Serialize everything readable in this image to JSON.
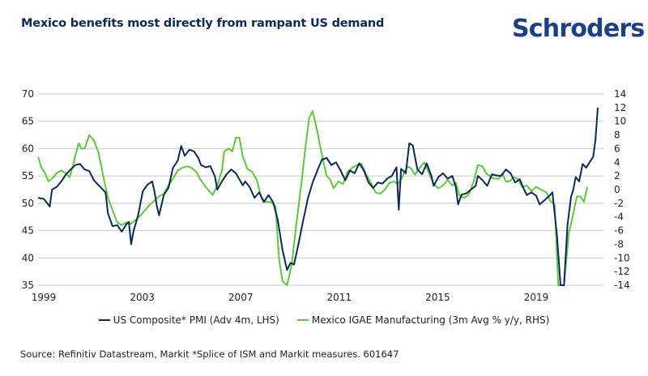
{
  "header": {
    "title": "Mexico benefits most directly from rampant US demand",
    "brand": "Schroders"
  },
  "footer": {
    "source": "Source: Refinitiv Datastream, Markit *Splice of ISM and Markit measures. 601647"
  },
  "colors": {
    "us_pmi": "#0b2a5b",
    "mexico_igae": "#5cc93b",
    "grid": "#c8c8c8",
    "title": "#0b2a5b",
    "brand": "#1d3f86"
  },
  "chart_data": {
    "type": "line",
    "title": "Mexico benefits most directly from rampant US demand",
    "xlabel": "",
    "ylabel": "",
    "x_ticks": [
      "1999",
      "2003",
      "2007",
      "2011",
      "2015",
      "2019"
    ],
    "x_range": [
      1999,
      2022
    ],
    "y_left": {
      "range": [
        35,
        70
      ],
      "ticks": [
        "70",
        "65",
        "60",
        "55",
        "50",
        "45",
        "40",
        "35"
      ]
    },
    "y_right": {
      "range": [
        -14,
        14
      ],
      "ticks": [
        "14",
        "12",
        "10",
        "8",
        "6",
        "4",
        "2",
        "0",
        "-2",
        "-4",
        "-6",
        "-8",
        "-10",
        "-12",
        "-14"
      ]
    },
    "grid": true,
    "legend_position": "bottom",
    "series": [
      {
        "name": "US Composite* PMI (Adv 4m, LHS)",
        "axis": "left",
        "points": [
          [
            1999.0,
            51.0
          ],
          [
            1999.25,
            50.8
          ],
          [
            1999.5,
            49.4
          ],
          [
            1999.6,
            52.5
          ],
          [
            1999.8,
            53.0
          ],
          [
            2000.0,
            54.0
          ],
          [
            2000.2,
            55.3
          ],
          [
            2000.4,
            56.2
          ],
          [
            2000.6,
            57.0
          ],
          [
            2000.8,
            57.2
          ],
          [
            2001.0,
            56.2
          ],
          [
            2001.2,
            55.9
          ],
          [
            2001.4,
            54.2
          ],
          [
            2001.6,
            53.3
          ],
          [
            2001.9,
            52.0
          ],
          [
            2002.0,
            48.2
          ],
          [
            2002.2,
            45.8
          ],
          [
            2002.4,
            46.0
          ],
          [
            2002.6,
            44.8
          ],
          [
            2002.8,
            46.2
          ],
          [
            2002.9,
            46.6
          ],
          [
            2003.0,
            42.5
          ],
          [
            2003.1,
            44.9
          ],
          [
            2003.3,
            47.8
          ],
          [
            2003.5,
            52.2
          ],
          [
            2003.7,
            53.4
          ],
          [
            2003.9,
            54.0
          ],
          [
            2004.0,
            52.2
          ],
          [
            2004.1,
            49.6
          ],
          [
            2004.2,
            47.8
          ],
          [
            2004.4,
            51.5
          ],
          [
            2004.6,
            52.8
          ],
          [
            2004.8,
            56.5
          ],
          [
            2005.0,
            57.8
          ],
          [
            2005.15,
            60.5
          ],
          [
            2005.3,
            58.7
          ],
          [
            2005.5,
            59.8
          ],
          [
            2005.7,
            59.5
          ],
          [
            2005.9,
            58.2
          ],
          [
            2006.0,
            57.0
          ],
          [
            2006.2,
            56.6
          ],
          [
            2006.4,
            56.8
          ],
          [
            2006.6,
            54.9
          ],
          [
            2006.7,
            52.5
          ],
          [
            2006.9,
            54.0
          ],
          [
            2007.1,
            55.3
          ],
          [
            2007.3,
            56.2
          ],
          [
            2007.5,
            55.5
          ],
          [
            2007.7,
            54.0
          ],
          [
            2007.8,
            53.3
          ],
          [
            2007.9,
            54.0
          ],
          [
            2008.1,
            52.9
          ],
          [
            2008.3,
            51.0
          ],
          [
            2008.5,
            52.0
          ],
          [
            2008.7,
            50.2
          ],
          [
            2008.9,
            51.5
          ],
          [
            2009.1,
            50.2
          ],
          [
            2009.3,
            47.0
          ],
          [
            2009.5,
            41.5
          ],
          [
            2009.7,
            37.8
          ],
          [
            2009.85,
            39.1
          ],
          [
            2010.0,
            38.8
          ],
          [
            2010.2,
            42.8
          ],
          [
            2010.4,
            47.0
          ],
          [
            2010.6,
            51.0
          ],
          [
            2010.8,
            53.8
          ],
          [
            2011.0,
            56.0
          ],
          [
            2011.2,
            58.0
          ],
          [
            2011.4,
            58.3
          ],
          [
            2011.6,
            57.0
          ],
          [
            2011.8,
            57.5
          ],
          [
            2012.0,
            56.0
          ],
          [
            2012.2,
            54.2
          ],
          [
            2012.4,
            56.0
          ],
          [
            2012.6,
            55.5
          ],
          [
            2012.8,
            57.3
          ],
          [
            2013.0,
            56.0
          ],
          [
            2013.2,
            53.8
          ],
          [
            2013.4,
            52.8
          ],
          [
            2013.6,
            53.8
          ],
          [
            2013.8,
            53.6
          ],
          [
            2014.0,
            54.5
          ],
          [
            2014.2,
            55.0
          ],
          [
            2014.4,
            56.6
          ],
          [
            2014.5,
            48.8
          ],
          [
            2014.6,
            56.3
          ],
          [
            2014.8,
            55.5
          ],
          [
            2014.95,
            61.0
          ],
          [
            2015.1,
            60.6
          ],
          [
            2015.3,
            56.2
          ],
          [
            2015.5,
            55.3
          ],
          [
            2015.7,
            57.3
          ],
          [
            2015.9,
            55.0
          ],
          [
            2016.0,
            53.2
          ],
          [
            2016.2,
            54.8
          ],
          [
            2016.4,
            55.5
          ],
          [
            2016.6,
            54.5
          ],
          [
            2016.8,
            55.0
          ],
          [
            2016.95,
            53.0
          ],
          [
            2017.05,
            49.8
          ],
          [
            2017.2,
            51.6
          ],
          [
            2017.4,
            51.8
          ],
          [
            2017.6,
            52.5
          ],
          [
            2017.8,
            53.2
          ],
          [
            2017.9,
            55.0
          ],
          [
            2018.1,
            54.2
          ],
          [
            2018.3,
            53.2
          ],
          [
            2018.5,
            55.3
          ],
          [
            2018.7,
            55.1
          ],
          [
            2018.9,
            55.0
          ],
          [
            2019.1,
            56.2
          ],
          [
            2019.3,
            55.5
          ],
          [
            2019.5,
            53.8
          ],
          [
            2019.7,
            54.4
          ],
          [
            2019.85,
            52.8
          ],
          [
            2020.0,
            51.5
          ],
          [
            2020.2,
            52.0
          ],
          [
            2020.4,
            51.4
          ],
          [
            2020.55,
            49.8
          ],
          [
            2020.75,
            50.5
          ],
          [
            2021.0,
            51.5
          ],
          [
            2021.1,
            52.0
          ],
          [
            2021.3,
            44.0
          ],
          [
            2021.45,
            35.0
          ],
          [
            2021.6,
            35.0
          ],
          [
            2021.75,
            46.0
          ],
          [
            2021.9,
            51.2
          ],
          [
            2022.0,
            52.5
          ],
          [
            2022.1,
            54.8
          ],
          [
            2022.25,
            54.0
          ],
          [
            2022.4,
            57.2
          ],
          [
            2022.55,
            56.5
          ],
          [
            2022.7,
            57.5
          ],
          [
            2022.85,
            58.5
          ],
          [
            2022.95,
            61.5
          ],
          [
            2023.05,
            67.5
          ]
        ]
      },
      {
        "name": "Mexico IGAE Manufacturing (3m Avg % y/y, RHS)",
        "axis": "right",
        "points": [
          [
            1999.0,
            4.8
          ],
          [
            1999.15,
            3.2
          ],
          [
            1999.3,
            2.4
          ],
          [
            1999.45,
            1.2
          ],
          [
            1999.6,
            1.6
          ],
          [
            1999.8,
            2.4
          ],
          [
            2000.0,
            2.8
          ],
          [
            2000.2,
            2.4
          ],
          [
            2000.35,
            1.8
          ],
          [
            2000.5,
            3.4
          ],
          [
            2000.6,
            5.0
          ],
          [
            2000.75,
            6.8
          ],
          [
            2000.85,
            6.0
          ],
          [
            2001.0,
            6.0
          ],
          [
            2001.2,
            8.0
          ],
          [
            2001.4,
            7.2
          ],
          [
            2001.6,
            5.4
          ],
          [
            2001.8,
            2.0
          ],
          [
            2002.0,
            -1.2
          ],
          [
            2002.2,
            -3.0
          ],
          [
            2002.4,
            -4.8
          ],
          [
            2002.6,
            -5.2
          ],
          [
            2002.8,
            -4.8
          ],
          [
            2003.0,
            -5.0
          ],
          [
            2003.2,
            -4.4
          ],
          [
            2003.4,
            -3.8
          ],
          [
            2003.6,
            -3.0
          ],
          [
            2003.8,
            -2.2
          ],
          [
            2004.0,
            -1.6
          ],
          [
            2004.2,
            -1.0
          ],
          [
            2004.4,
            -0.6
          ],
          [
            2004.6,
            0.6
          ],
          [
            2004.8,
            1.6
          ],
          [
            2005.0,
            2.8
          ],
          [
            2005.2,
            3.2
          ],
          [
            2005.4,
            3.4
          ],
          [
            2005.6,
            3.2
          ],
          [
            2005.8,
            2.6
          ],
          [
            2005.95,
            1.6
          ],
          [
            2006.2,
            0.4
          ],
          [
            2006.5,
            -0.8
          ],
          [
            2006.7,
            0.6
          ],
          [
            2006.9,
            2.8
          ],
          [
            2007.0,
            5.6
          ],
          [
            2007.2,
            6.0
          ],
          [
            2007.35,
            5.6
          ],
          [
            2007.5,
            7.6
          ],
          [
            2007.65,
            7.6
          ],
          [
            2007.8,
            4.8
          ],
          [
            2008.0,
            3.0
          ],
          [
            2008.2,
            2.6
          ],
          [
            2008.4,
            1.4
          ],
          [
            2008.6,
            -1.2
          ],
          [
            2008.8,
            -1.8
          ],
          [
            2009.0,
            -1.8
          ],
          [
            2009.2,
            -2.4
          ],
          [
            2009.35,
            -10.0
          ],
          [
            2009.5,
            -13.4
          ],
          [
            2009.7,
            -14.0
          ],
          [
            2009.9,
            -11.0
          ],
          [
            2010.1,
            -5.0
          ],
          [
            2010.3,
            0.5
          ],
          [
            2010.5,
            6.5
          ],
          [
            2010.65,
            10.5
          ],
          [
            2010.8,
            11.5
          ],
          [
            2011.0,
            8.5
          ],
          [
            2011.2,
            5.0
          ],
          [
            2011.4,
            2.0
          ],
          [
            2011.55,
            1.5
          ],
          [
            2011.7,
            0.2
          ],
          [
            2011.9,
            1.2
          ],
          [
            2012.1,
            0.8
          ],
          [
            2012.3,
            2.6
          ],
          [
            2012.5,
            3.2
          ],
          [
            2012.7,
            3.6
          ],
          [
            2012.9,
            3.8
          ],
          [
            2013.1,
            2.2
          ],
          [
            2013.3,
            1.0
          ],
          [
            2013.5,
            -0.4
          ],
          [
            2013.7,
            -0.6
          ],
          [
            2013.9,
            0.0
          ],
          [
            2014.1,
            1.0
          ],
          [
            2014.3,
            1.2
          ],
          [
            2014.45,
            0.8
          ],
          [
            2014.65,
            1.8
          ],
          [
            2014.85,
            3.4
          ],
          [
            2015.0,
            3.2
          ],
          [
            2015.2,
            2.2
          ],
          [
            2015.4,
            3.2
          ],
          [
            2015.6,
            4.0
          ],
          [
            2015.8,
            2.4
          ],
          [
            2016.0,
            0.8
          ],
          [
            2016.2,
            0.2
          ],
          [
            2016.4,
            0.6
          ],
          [
            2016.6,
            1.4
          ],
          [
            2016.8,
            0.6
          ],
          [
            2016.95,
            1.0
          ],
          [
            2017.1,
            -0.8
          ],
          [
            2017.3,
            -1.2
          ],
          [
            2017.5,
            -0.8
          ],
          [
            2017.7,
            1.0
          ],
          [
            2017.9,
            3.6
          ],
          [
            2018.1,
            3.4
          ],
          [
            2018.25,
            2.4
          ],
          [
            2018.4,
            2.0
          ],
          [
            2018.6,
            1.6
          ],
          [
            2018.8,
            1.6
          ],
          [
            2018.95,
            2.4
          ],
          [
            2019.1,
            1.2
          ],
          [
            2019.25,
            1.2
          ],
          [
            2019.45,
            1.8
          ],
          [
            2019.6,
            1.6
          ],
          [
            2019.8,
            0.4
          ],
          [
            2020.0,
            0.6
          ],
          [
            2020.2,
            -0.2
          ],
          [
            2020.4,
            0.4
          ],
          [
            2020.6,
            0.0
          ],
          [
            2020.85,
            -0.4
          ],
          [
            2021.0,
            -1.6
          ],
          [
            2021.2,
            -2.2
          ],
          [
            2021.35,
            -14.0
          ],
          [
            2021.6,
            -14.0
          ],
          [
            2021.8,
            -6.5
          ],
          [
            2022.0,
            -3.5
          ],
          [
            2022.15,
            -1.0
          ],
          [
            2022.3,
            -1.0
          ],
          [
            2022.45,
            -1.8
          ],
          [
            2022.6,
            0.4
          ]
        ]
      }
    ]
  },
  "legend": {
    "items": [
      {
        "label": "US Composite* PMI (Adv 4m, LHS)",
        "color": "#0b2a5b"
      },
      {
        "label": "Mexico IGAE Manufacturing (3m Avg % y/y, RHS)",
        "color": "#5cc93b"
      }
    ]
  }
}
